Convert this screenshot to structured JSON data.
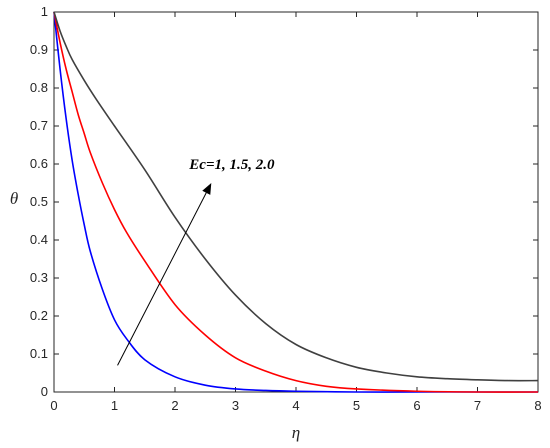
{
  "chart_data": {
    "type": "line",
    "xlabel": "η",
    "ylabel": "θ",
    "xlim": [
      0,
      8
    ],
    "ylim": [
      0,
      1
    ],
    "xticks": [
      "0",
      "1",
      "2",
      "3",
      "4",
      "5",
      "6",
      "7",
      "8"
    ],
    "yticks": [
      "0",
      "0.1",
      "0.2",
      "0.3",
      "0.4",
      "0.5",
      "0.6",
      "0.7",
      "0.8",
      "0.9",
      "1"
    ],
    "grid": false,
    "annotation": {
      "text": "Ec=1, 1.5, 2.0",
      "arrow_from": [
        1.05,
        0.07
      ],
      "arrow_to": [
        2.6,
        0.55
      ]
    },
    "series": [
      {
        "color": "#0000ff",
        "x": [
          0,
          0.1,
          0.2,
          0.3,
          0.4,
          0.5,
          0.6,
          0.8,
          1.0,
          1.2,
          1.5,
          2.0,
          2.5,
          3.0,
          3.5,
          4.0,
          5.0,
          6.0,
          7.0,
          8.0
        ],
        "y": [
          1.0,
          0.85,
          0.72,
          0.61,
          0.52,
          0.44,
          0.37,
          0.27,
          0.19,
          0.14,
          0.085,
          0.04,
          0.018,
          0.008,
          0.004,
          0.002,
          0.0,
          0.0,
          0.0,
          0.0
        ]
      },
      {
        "color": "#ff0000",
        "x": [
          0,
          0.1,
          0.2,
          0.3,
          0.4,
          0.5,
          0.6,
          0.8,
          1.0,
          1.2,
          1.5,
          2.0,
          2.5,
          3.0,
          3.5,
          4.0,
          4.5,
          5.0,
          6.0,
          7.0,
          8.0
        ],
        "y": [
          1.0,
          0.92,
          0.85,
          0.79,
          0.73,
          0.68,
          0.63,
          0.55,
          0.48,
          0.42,
          0.345,
          0.23,
          0.15,
          0.09,
          0.055,
          0.03,
          0.015,
          0.008,
          0.002,
          0.0,
          0.0
        ]
      },
      {
        "color": "#404040",
        "x": [
          0,
          0.1,
          0.2,
          0.3,
          0.5,
          0.7,
          1.0,
          1.5,
          2.0,
          2.5,
          3.0,
          3.5,
          4.0,
          4.5,
          5.0,
          5.5,
          6.0,
          6.5,
          7.0,
          7.5,
          8.0
        ],
        "y": [
          1.0,
          0.95,
          0.91,
          0.875,
          0.82,
          0.77,
          0.7,
          0.585,
          0.46,
          0.35,
          0.255,
          0.18,
          0.125,
          0.09,
          0.065,
          0.05,
          0.04,
          0.035,
          0.032,
          0.03,
          0.03
        ]
      }
    ]
  }
}
